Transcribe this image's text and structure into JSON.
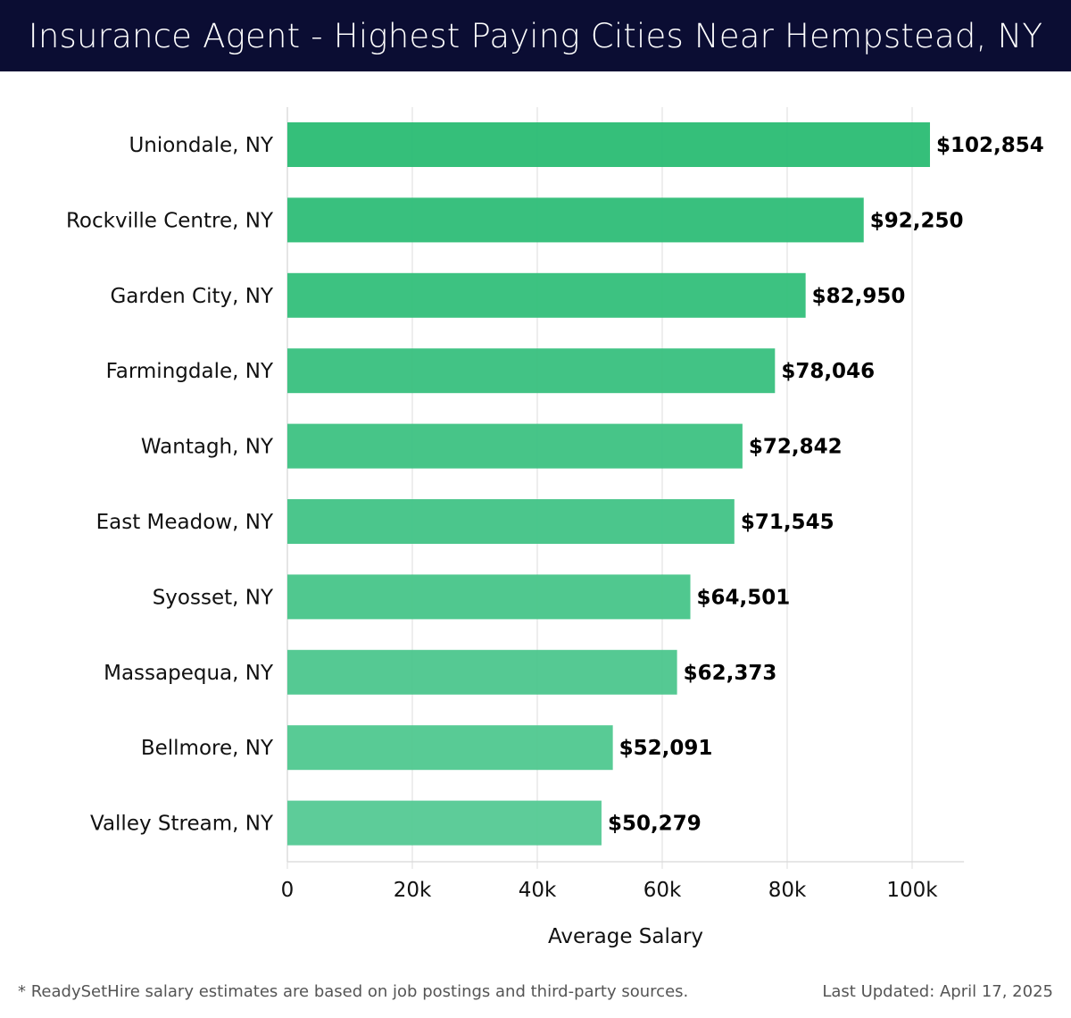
{
  "header": {
    "title": "Insurance Agent - Highest Paying Cities Near Hempstead, NY"
  },
  "chart_data": {
    "type": "bar",
    "orientation": "horizontal",
    "title": "Insurance Agent - Highest Paying Cities Near Hempstead, NY",
    "categories": [
      "Uniondale, NY",
      "Rockville Centre, NY",
      "Garden City, NY",
      "Farmingdale, NY",
      "Wantagh, NY",
      "East Meadow, NY",
      "Syosset, NY",
      "Massapequa, NY",
      "Bellmore, NY",
      "Valley Stream, NY"
    ],
    "values": [
      102854,
      92250,
      82950,
      78046,
      72842,
      71545,
      64501,
      62373,
      52091,
      50279
    ],
    "data_labels": [
      "$102,854",
      "$92,250",
      "$82,950",
      "$78,046",
      "$72,842",
      "$71,545",
      "$64,501",
      "$62,373",
      "$52,091",
      "$50,279"
    ],
    "xlabel": "Average Salary",
    "ylabel": "",
    "xlim": [
      0,
      108300
    ],
    "xticks": [
      0,
      20000,
      40000,
      60000,
      80000,
      100000
    ],
    "xtick_labels": [
      "0",
      "20k",
      "40k",
      "60k",
      "80k",
      "100k"
    ],
    "grid": true,
    "colors": {
      "top": "#2ebd76",
      "bottom": "#58ca96"
    }
  },
  "footer": {
    "note": "* ReadySetHire salary estimates are based on job postings and third-party sources.",
    "updated": "Last Updated: April 17, 2025"
  }
}
